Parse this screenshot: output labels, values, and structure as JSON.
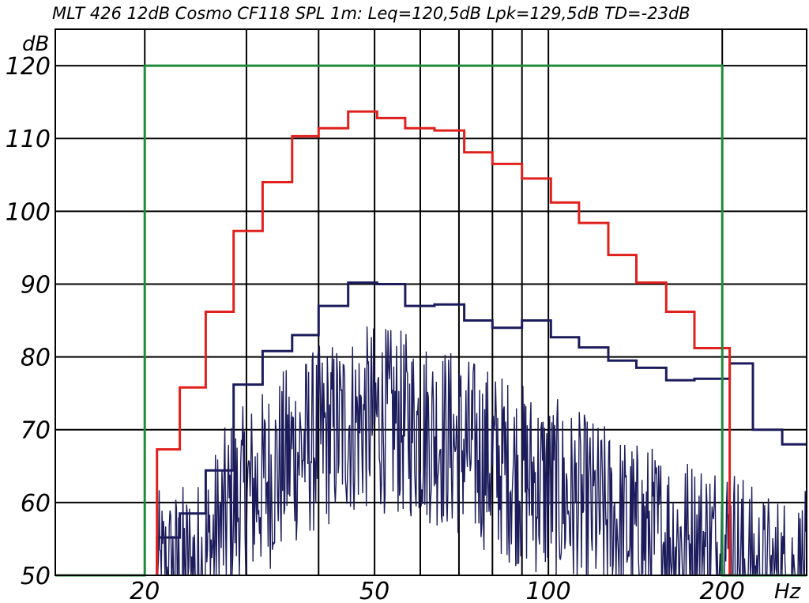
{
  "chart_data": {
    "type": "line",
    "title": "MLT 426  12dB  Cosmo  CF118  SPL  1m:  Leq=120,5dB    Lpk=129,5dB    TD=-23dB",
    "ylabel": "dB",
    "xlabel": "Hz",
    "xscale": "log",
    "xlim": [
      14,
      280
    ],
    "ylim": [
      50,
      125
    ],
    "grid": true,
    "ytick_labels": [
      "50",
      "60",
      "70",
      "80",
      "90",
      "100",
      "110",
      "120"
    ],
    "xtick_labels": [
      {
        "value": 20,
        "label": "20"
      },
      {
        "value": 50,
        "label": "50"
      },
      {
        "value": 100,
        "label": "100"
      },
      {
        "value": 200,
        "label": "200"
      }
    ],
    "xgrid": [
      20,
      30,
      40,
      50,
      60,
      70,
      80,
      90,
      100,
      200
    ],
    "series": [
      {
        "color": "#1e8a3a",
        "style": "filter-window",
        "points": [
          [
            14,
            50
          ],
          [
            20,
            50
          ],
          [
            20,
            120
          ],
          [
            200,
            120
          ],
          [
            200,
            50
          ],
          [
            280,
            50
          ]
        ]
      },
      {
        "color": "#e0201c",
        "style": "step",
        "edges": [
          21,
          23,
          25.5,
          28.5,
          32,
          36,
          40,
          45,
          50.5,
          56.5,
          63.5,
          71.5,
          80,
          90,
          101,
          113,
          127,
          142,
          160,
          179,
          201,
          206
        ],
        "values": [
          67.3,
          75.8,
          86.2,
          97.3,
          104.0,
          110.3,
          111.4,
          113.7,
          112.8,
          111.4,
          111.1,
          108.1,
          106.5,
          104.5,
          101.2,
          98.4,
          94.0,
          90.2,
          86.2,
          81.2,
          81.2
        ],
        "drop_to": 50
      },
      {
        "color": "#1c1c5c",
        "style": "step",
        "edges": [
          14,
          21,
          23,
          25.5,
          28.5,
          32,
          36,
          40,
          45,
          50.5,
          56.5,
          63.5,
          71.5,
          80,
          90,
          101,
          113,
          127,
          142,
          160,
          179,
          206,
          226,
          254,
          280
        ],
        "values": [
          null,
          55.2,
          58.5,
          64.4,
          76.2,
          80.8,
          83.0,
          87.0,
          90.2,
          90.0,
          87.0,
          87.2,
          85.0,
          84.0,
          85.0,
          82.7,
          81.3,
          79.5,
          78.5,
          76.8,
          77.0,
          79.1,
          70.0,
          68.0
        ]
      },
      {
        "color": "#1c1c5c",
        "style": "fine-spectrum",
        "x_range": [
          21,
          280
        ],
        "envelope": [
          [
            21,
            50
          ],
          [
            25,
            52
          ],
          [
            28,
            60
          ],
          [
            32,
            64
          ],
          [
            36,
            68
          ],
          [
            40,
            70
          ],
          [
            45,
            72
          ],
          [
            50,
            73
          ],
          [
            56,
            72
          ],
          [
            63,
            71
          ],
          [
            71,
            69
          ],
          [
            80,
            67
          ],
          [
            90,
            65
          ],
          [
            101,
            63
          ],
          [
            113,
            61
          ],
          [
            127,
            59
          ],
          [
            142,
            57
          ],
          [
            160,
            56
          ],
          [
            179,
            55
          ],
          [
            206,
            55
          ],
          [
            230,
            50
          ],
          [
            280,
            50
          ]
        ],
        "peak_max": 84.3
      }
    ]
  }
}
